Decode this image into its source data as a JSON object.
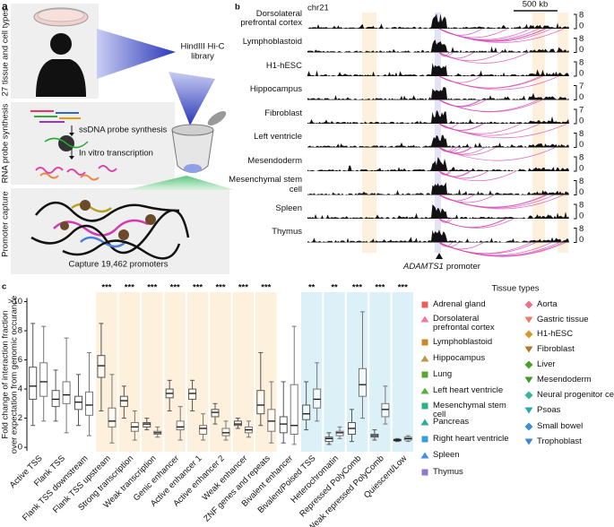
{
  "panel_a": {
    "label": "a",
    "tissue_label": "27 tissue and cell types",
    "library": [
      "HindIII Hi-C",
      "library"
    ],
    "probe_label": "RNA probe synthesis",
    "ssdna": "ssDNA probe synthesis",
    "transcription": "In vitro transcription",
    "capture_label": "Promoter capture",
    "capture_text": "Capture 19,462 promoters"
  },
  "panel_b": {
    "label": "b",
    "chromosome": "chr21",
    "scale_bar": "500 kb",
    "tracks": [
      {
        "name": "Dorsolateral prefrontal cortex",
        "ymax": 8,
        "ymin": 0
      },
      {
        "name": "Lymphoblastoid",
        "ymax": 8,
        "ymin": 0
      },
      {
        "name": "H1-hESC",
        "ymax": 8,
        "ymin": 0
      },
      {
        "name": "Hippocampus",
        "ymax": 7,
        "ymin": 0
      },
      {
        "name": "Fibroblast",
        "ymax": 7,
        "ymin": 0
      },
      {
        "name": "Left ventricle",
        "ymax": 8,
        "ymin": 0
      },
      {
        "name": "Mesendoderm",
        "ymax": 8,
        "ymin": 0
      },
      {
        "name": "Mesenchymal stem cell",
        "ymax": 8,
        "ymin": 0
      },
      {
        "name": "Spleen",
        "ymax": 8,
        "ymin": 0
      },
      {
        "name": "Thymus",
        "ymax": 8,
        "ymin": 0
      }
    ],
    "gene": "ADAMTS1",
    "gene_suffix": "promoter"
  },
  "chart_data": {
    "type": "box",
    "label": "c",
    "ylabel": [
      "Fold change of interaction fraction",
      "over expectation from genomic occurance"
    ],
    "categories": [
      "Active TSS",
      "Flank TSS",
      "Flank TSS downstream",
      "Flank TSS upstream",
      "Strong transcription",
      "Weak transcription",
      "Genic enhancer",
      "Active enhancer 1",
      "Active enhancer 2",
      "Weak enhancer",
      "ZNF genes and repeats",
      "Bivalent enhancer",
      "Bivalent/Poised TSS",
      "Heterochromatin",
      "Repressed PolyComb",
      "Weak repressed PolyComb",
      "Quiescent/Low"
    ],
    "significance": [
      null,
      null,
      null,
      "***",
      "***",
      "***",
      "***",
      "***",
      "***",
      "***",
      "***",
      null,
      "**",
      "**",
      "***",
      "***",
      "***"
    ],
    "highlight": [
      null,
      null,
      null,
      "#fdf0dc",
      "#fdf0dc",
      "#fdf0dc",
      "#fdf0dc",
      "#fdf0dc",
      "#fdf0dc",
      "#fdf0dc",
      "#fdf0dc",
      null,
      "#dcf0f7",
      "#dcf0f7",
      "#dcf0f7",
      "#dcf0f7",
      "#dcf0f7"
    ],
    "ylim": [
      -0.3,
      10.4
    ],
    "yticks": [
      0,
      2,
      4,
      6,
      8,
      {
        "value": 10,
        "label": ">10"
      }
    ],
    "series": [
      {
        "color": "#555555",
        "boxes": [
          {
            "whislo": 1.5,
            "q1": 3.3,
            "med": 4.2,
            "q3": 5.5,
            "whishi": 8.5
          },
          {
            "whislo": 1.8,
            "q1": 2.8,
            "med": 3.3,
            "q3": 3.9,
            "whishi": 5.3
          },
          {
            "whislo": 1.5,
            "q1": 2.6,
            "med": 3.1,
            "q3": 3.5,
            "whishi": 5.0
          },
          {
            "whislo": 2.5,
            "q1": 4.8,
            "med": 5.6,
            "q3": 6.3,
            "whishi": 8.5
          },
          {
            "whislo": 2.0,
            "q1": 2.8,
            "med": 3.2,
            "q3": 3.5,
            "whishi": 4.2
          },
          {
            "whislo": 1.2,
            "q1": 1.4,
            "med": 1.6,
            "q3": 1.7,
            "whishi": 2.0
          },
          {
            "whislo": 2.5,
            "q1": 3.4,
            "med": 3.7,
            "q3": 4.0,
            "whishi": 4.6
          },
          {
            "whislo": 2.5,
            "q1": 3.3,
            "med": 3.7,
            "q3": 4.0,
            "whishi": 4.6
          },
          {
            "whislo": 1.6,
            "q1": 2.1,
            "med": 2.4,
            "q3": 2.6,
            "whishi": 3.0
          },
          {
            "whislo": 1.3,
            "q1": 1.5,
            "med": 1.6,
            "q3": 1.8,
            "whishi": 2.0
          },
          {
            "whislo": 1.5,
            "q1": 2.3,
            "med": 2.9,
            "q3": 3.9,
            "whishi": 6.5
          },
          {
            "whislo": 0.3,
            "q1": 1.0,
            "med": 1.6,
            "q3": 2.1,
            "whishi": 4.5
          },
          {
            "whislo": 1.2,
            "q1": 1.9,
            "med": 2.3,
            "q3": 2.9,
            "whishi": 4.5
          },
          {
            "whislo": 0.2,
            "q1": 0.4,
            "med": 0.6,
            "q3": 0.7,
            "whishi": 1.0
          },
          {
            "whislo": 0.4,
            "q1": 0.9,
            "med": 1.3,
            "q3": 1.7,
            "whishi": 2.6
          },
          {
            "whislo": 0.5,
            "q1": 0.7,
            "med": 0.8,
            "q3": 0.9,
            "whishi": 1.2
          },
          {
            "whislo": 0.4,
            "q1": 0.45,
            "med": 0.5,
            "q3": 0.55,
            "whishi": 0.6
          }
        ]
      },
      {
        "color": "#777777",
        "boxes": [
          {
            "whislo": 1.8,
            "q1": 3.5,
            "med": 4.5,
            "q3": 5.8,
            "whishi": 8.3
          },
          {
            "whislo": 1.0,
            "q1": 3.0,
            "med": 3.6,
            "q3": 4.5,
            "whishi": 7.5
          },
          {
            "whislo": 0.8,
            "q1": 2.2,
            "med": 2.9,
            "q3": 3.8,
            "whishi": 6.5
          },
          {
            "whislo": 0.3,
            "q1": 1.4,
            "med": 1.8,
            "q3": 2.7,
            "whishi": 5.0
          },
          {
            "whislo": 0.5,
            "q1": 1.1,
            "med": 1.4,
            "q3": 1.7,
            "whishi": 2.5
          },
          {
            "whislo": 0.7,
            "q1": 0.9,
            "med": 1.0,
            "q3": 1.1,
            "whishi": 1.4
          },
          {
            "whislo": 0.5,
            "q1": 1.2,
            "med": 1.4,
            "q3": 1.8,
            "whishi": 2.8
          },
          {
            "whislo": 0.5,
            "q1": 0.9,
            "med": 1.3,
            "q3": 1.5,
            "whishi": 2.3
          },
          {
            "whislo": 0.5,
            "q1": 0.8,
            "med": 1.0,
            "q3": 1.3,
            "whishi": 1.8
          },
          {
            "whislo": 0.7,
            "q1": 1.0,
            "med": 1.2,
            "q3": 1.4,
            "whishi": 1.8
          },
          {
            "whislo": 0.3,
            "q1": 1.1,
            "med": 1.8,
            "q3": 2.6,
            "whishi": 4.5
          },
          {
            "whislo": 0.2,
            "q1": 0.9,
            "med": 1.5,
            "q3": 4.3,
            "whishi": 8.3
          },
          {
            "whislo": 1.8,
            "q1": 2.7,
            "med": 3.3,
            "q3": 4.0,
            "whishi": 5.8
          },
          {
            "whislo": 0.6,
            "q1": 0.8,
            "med": 1.0,
            "q3": 1.1,
            "whishi": 1.4
          },
          {
            "whislo": 2.0,
            "q1": 3.5,
            "med": 4.3,
            "q3": 5.4,
            "whishi": 9.3
          },
          {
            "whislo": 1.6,
            "q1": 2.1,
            "med": 2.6,
            "q3": 3.0,
            "whishi": 4.2
          },
          {
            "whislo": 0.4,
            "q1": 0.5,
            "med": 0.6,
            "q3": 0.7,
            "whishi": 0.8
          }
        ]
      }
    ],
    "legend": {
      "title": "Tissue types",
      "items": [
        {
          "name": "Adrenal gland",
          "color": "#e8605a",
          "marker": "square"
        },
        {
          "name": "Aorta",
          "color": "#ee6f8a",
          "marker": "diamond"
        },
        {
          "name": "Dorsolateral prefrontal cortex",
          "color": "#ee7aa0",
          "marker": "triangle-up"
        },
        {
          "name": "Gastric tissue",
          "color": "#f07a6a",
          "marker": "triangle-down"
        },
        {
          "name": "Lymphoblastoid",
          "color": "#c98a2a",
          "marker": "square"
        },
        {
          "name": "H1-hESC",
          "color": "#d8962c",
          "marker": "diamond"
        },
        {
          "name": "Hippocampus",
          "color": "#b89a4a",
          "marker": "triangle-up"
        },
        {
          "name": "Fibroblast",
          "color": "#b07a2a",
          "marker": "triangle-down"
        },
        {
          "name": "Lung",
          "color": "#5aa832",
          "marker": "square"
        },
        {
          "name": "Liver",
          "color": "#4c9e2a",
          "marker": "diamond"
        },
        {
          "name": "Left heart ventricle",
          "color": "#58b040",
          "marker": "triangle-up"
        },
        {
          "name": "Mesendoderm",
          "color": "#3e9a2a",
          "marker": "triangle-down"
        },
        {
          "name": "Mesenchymal stem cell",
          "color": "#2fae8a",
          "marker": "square"
        },
        {
          "name": "Neural progenitor cells",
          "color": "#36b39a",
          "marker": "diamond"
        },
        {
          "name": "Pancreas",
          "color": "#2ea7a0",
          "marker": "triangle-up"
        },
        {
          "name": "Psoas",
          "color": "#2aa8b0",
          "marker": "triangle-down"
        },
        {
          "name": "Right heart ventricle",
          "color": "#3a9fd8",
          "marker": "square"
        },
        {
          "name": "Small bowel",
          "color": "#3a8fd8",
          "marker": "diamond"
        },
        {
          "name": "Spleen",
          "color": "#4a8ee0",
          "marker": "triangle-up"
        },
        {
          "name": "Trophoblast",
          "color": "#3d86d6",
          "marker": "triangle-down"
        },
        {
          "name": "Thymus",
          "color": "#8f7ac8",
          "marker": "square"
        }
      ]
    }
  }
}
